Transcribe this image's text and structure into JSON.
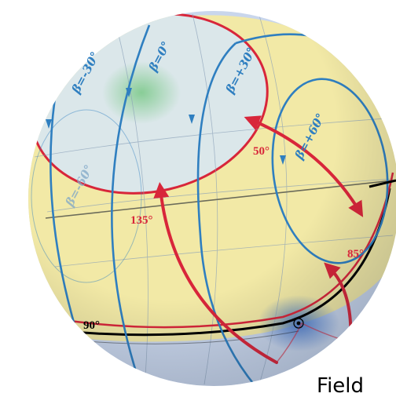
{
  "labels": {
    "beta_m30": "β=-30°",
    "beta_0": "β=0°",
    "beta_p30": "β=+30°",
    "beta_p60": "β=+60°",
    "beta_m60": "β=-60°",
    "angle_50": "50°",
    "angle_135": "135°",
    "angle_85": "85°",
    "angle_90": "90°",
    "field": "Field"
  },
  "colors": {
    "sphere_blue": "#c9d6ec",
    "band_yellow": "#f2e9a6",
    "cap_blue": "#d8e6ec",
    "green_glow": "#7fc98a",
    "blue_glow": "#4a7fd0",
    "red": "#d8263a",
    "blue_line": "#2f7fc0",
    "black_line": "#000000",
    "grid": "#8aa0b8"
  },
  "icons": {
    "nucleus_marker": "circle-target-icon"
  }
}
